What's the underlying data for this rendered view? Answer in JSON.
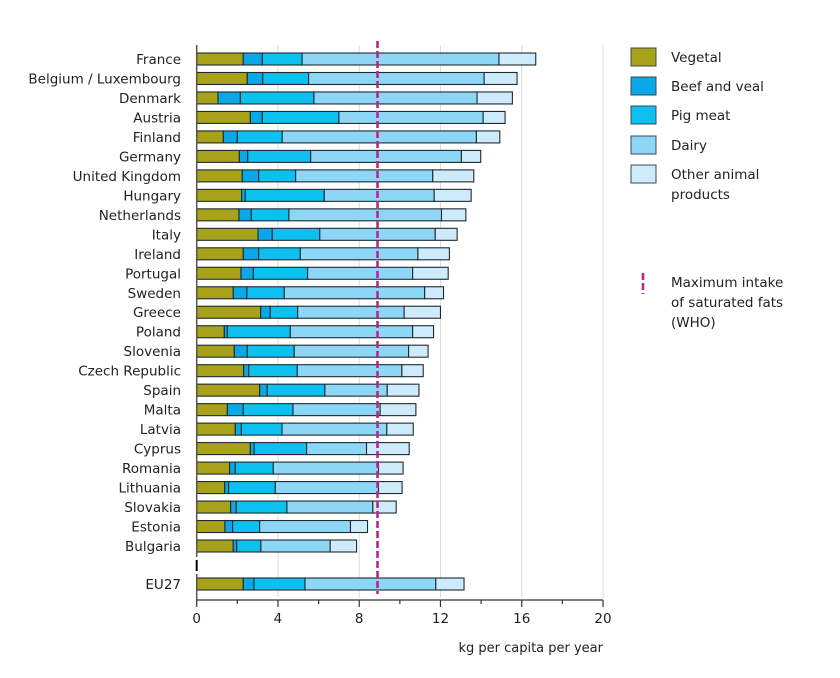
{
  "chart_data": {
    "type": "bar",
    "orientation": "horizontal",
    "stacked": true,
    "title": "",
    "xlabel": "kg per capita per year",
    "ylabel": "",
    "xlim": [
      0,
      20
    ],
    "xticks": [
      0,
      4,
      8,
      12,
      16,
      20
    ],
    "xtick_labels": [
      "0",
      "4",
      "8",
      "12",
      "16",
      "20"
    ],
    "grid": "vertical",
    "legend_position": "right",
    "categories": [
      "France",
      "Belgium / Luxembourg",
      "Denmark",
      "Austria",
      "Finland",
      "Germany",
      "United Kingdom",
      "Hungary",
      "Netherlands",
      "Italy",
      "Ireland",
      "Portugal",
      "Sweden",
      "Greece",
      "Poland",
      "Slovenia",
      "Czech Republic",
      "Spain",
      "Malta",
      "Latvia",
      "Cyprus",
      "Romania",
      "Lithuania",
      "Slovakia",
      "Estonia",
      "Bulgaria",
      "EU27"
    ],
    "series": [
      {
        "name": "Vegetal",
        "color": "#a8a21a",
        "values": [
          2.29,
          2.49,
          1.05,
          2.64,
          1.31,
          2.1,
          2.24,
          2.21,
          2.08,
          3.02,
          2.29,
          2.18,
          1.8,
          3.15,
          1.36,
          1.85,
          2.31,
          3.1,
          1.51,
          1.9,
          2.64,
          1.62,
          1.38,
          1.67,
          1.39,
          1.8,
          2.29
        ]
      },
      {
        "name": "Beef and veal",
        "color": "#0aa8e6",
        "values": [
          0.94,
          0.76,
          1.1,
          0.59,
          0.69,
          0.41,
          0.81,
          0.18,
          0.61,
          0.7,
          0.76,
          0.61,
          0.67,
          0.47,
          0.15,
          0.64,
          0.25,
          0.37,
          0.78,
          0.3,
          0.19,
          0.28,
          0.19,
          0.28,
          0.38,
          0.17,
          0.53
        ]
      },
      {
        "name": "Pig meat",
        "color": "#0cc0ef",
        "values": [
          1.96,
          2.26,
          3.62,
          3.77,
          2.21,
          3.1,
          1.82,
          3.89,
          1.85,
          2.34,
          2.05,
          2.67,
          1.84,
          1.35,
          3.1,
          2.31,
          2.39,
          2.84,
          2.45,
          2.0,
          2.58,
          1.87,
          2.3,
          2.49,
          1.33,
          1.19,
          2.51
        ]
      },
      {
        "name": "Dairy",
        "color": "#8ed6f6",
        "values": [
          9.69,
          8.64,
          8.03,
          7.1,
          9.56,
          7.42,
          6.75,
          5.41,
          7.51,
          5.68,
          5.79,
          5.17,
          6.91,
          5.24,
          6.02,
          5.63,
          5.15,
          3.07,
          4.29,
          5.16,
          2.95,
          5.18,
          5.08,
          4.23,
          4.47,
          3.41,
          6.44
        ]
      },
      {
        "name": "Other animal products",
        "color": "#cdebfb",
        "values": [
          1.81,
          1.62,
          1.74,
          1.08,
          1.15,
          0.95,
          2.02,
          1.82,
          1.2,
          1.08,
          1.55,
          1.75,
          0.93,
          1.79,
          1.03,
          0.96,
          1.05,
          1.56,
          1.76,
          1.3,
          2.1,
          1.21,
          1.16,
          1.15,
          0.84,
          1.3,
          1.39
        ]
      }
    ],
    "reference_line": {
      "label": "Maximum intake of saturated fats (WHO)",
      "value": 8.9,
      "color": "#c0248c",
      "style": "dashed"
    }
  },
  "legend": {
    "items": [
      {
        "label_lines": [
          "Vegetal"
        ]
      },
      {
        "label_lines": [
          "Beef and veal"
        ]
      },
      {
        "label_lines": [
          "Pig meat"
        ]
      },
      {
        "label_lines": [
          "Dairy"
        ]
      },
      {
        "label_lines": [
          "Other animal",
          "products"
        ]
      }
    ],
    "reference_label_lines": [
      "Maximum intake",
      "of saturated fats",
      "(WHO)"
    ]
  }
}
